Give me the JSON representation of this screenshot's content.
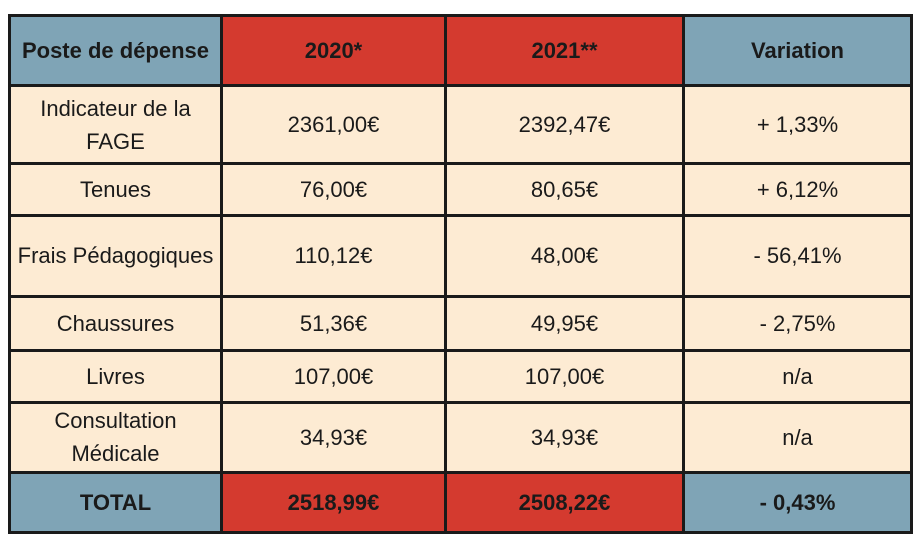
{
  "table": {
    "headers": [
      "Poste de dépense",
      "2020*",
      "2021**",
      "Variation"
    ],
    "rows": [
      {
        "poste": "Indicateur de la FAGE",
        "y2020": "2361,00€",
        "y2021": "2392,47€",
        "variation": "+ 1,33%"
      },
      {
        "poste": "Tenues",
        "y2020": "76,00€",
        "y2021": "80,65€",
        "variation": "+ 6,12%"
      },
      {
        "poste": "Frais Pédagogiques",
        "y2020": "110,12€",
        "y2021": "48,00€",
        "variation": "- 56,41%"
      },
      {
        "poste": "Chaussures",
        "y2020": "51,36€",
        "y2021": "49,95€",
        "variation": "- 2,75%"
      },
      {
        "poste": "Livres",
        "y2020": "107,00€",
        "y2021": "107,00€",
        "variation": "n/a"
      },
      {
        "poste": "Consultation Médicale",
        "y2020": "34,93€",
        "y2021": "34,93€",
        "variation": "n/a"
      }
    ],
    "total": {
      "poste": "TOTAL",
      "y2020": "2518,99€",
      "y2021": "2508,22€",
      "variation": "- 0,43%"
    }
  },
  "colors": {
    "header_blue": "#7fa4b6",
    "header_red": "#d43a2f",
    "row_beige": "#fdebd3",
    "border": "#1a1a1a"
  }
}
